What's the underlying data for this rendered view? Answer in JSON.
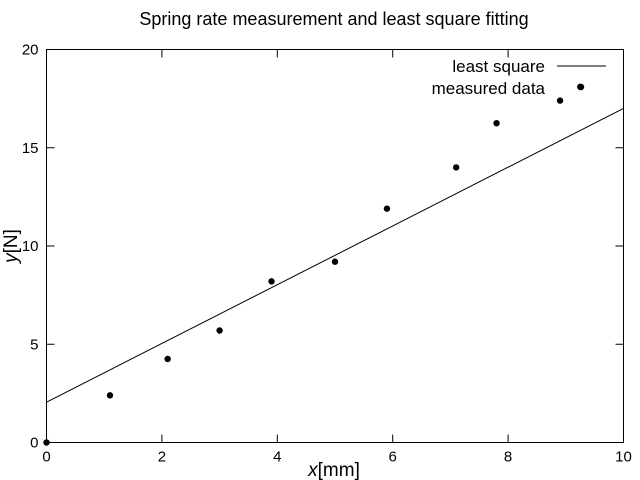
{
  "chart_data": {
    "type": "scatter",
    "title": "Spring rate measurement and least square fitting",
    "xlabel_var": "x",
    "xlabel_unit": "[mm]",
    "ylabel_var": "y",
    "ylabel_unit": "[N]",
    "xlim": [
      0,
      10
    ],
    "ylim": [
      0,
      20
    ],
    "x_ticks": [
      "0",
      "2",
      "4",
      "6",
      "8",
      "10"
    ],
    "y_ticks": [
      "0",
      "5",
      "10",
      "15",
      "20"
    ],
    "grid": false,
    "legend_position": "top-right",
    "legend": [
      "least square",
      "measured data"
    ],
    "series": [
      {
        "name": "least square",
        "kind": "line",
        "color": "#000000",
        "x": [
          0,
          10
        ],
        "y": [
          2.05,
          17.0
        ]
      },
      {
        "name": "measured data",
        "kind": "points",
        "color": "#000000",
        "x": [
          0,
          1.1,
          2.1,
          3.0,
          3.9,
          5.0,
          5.9,
          7.1,
          7.8,
          8.9,
          9.25
        ],
        "y": [
          0,
          2.4,
          4.25,
          5.7,
          8.2,
          9.2,
          11.9,
          14.0,
          16.25,
          17.4,
          18.1
        ]
      }
    ]
  }
}
